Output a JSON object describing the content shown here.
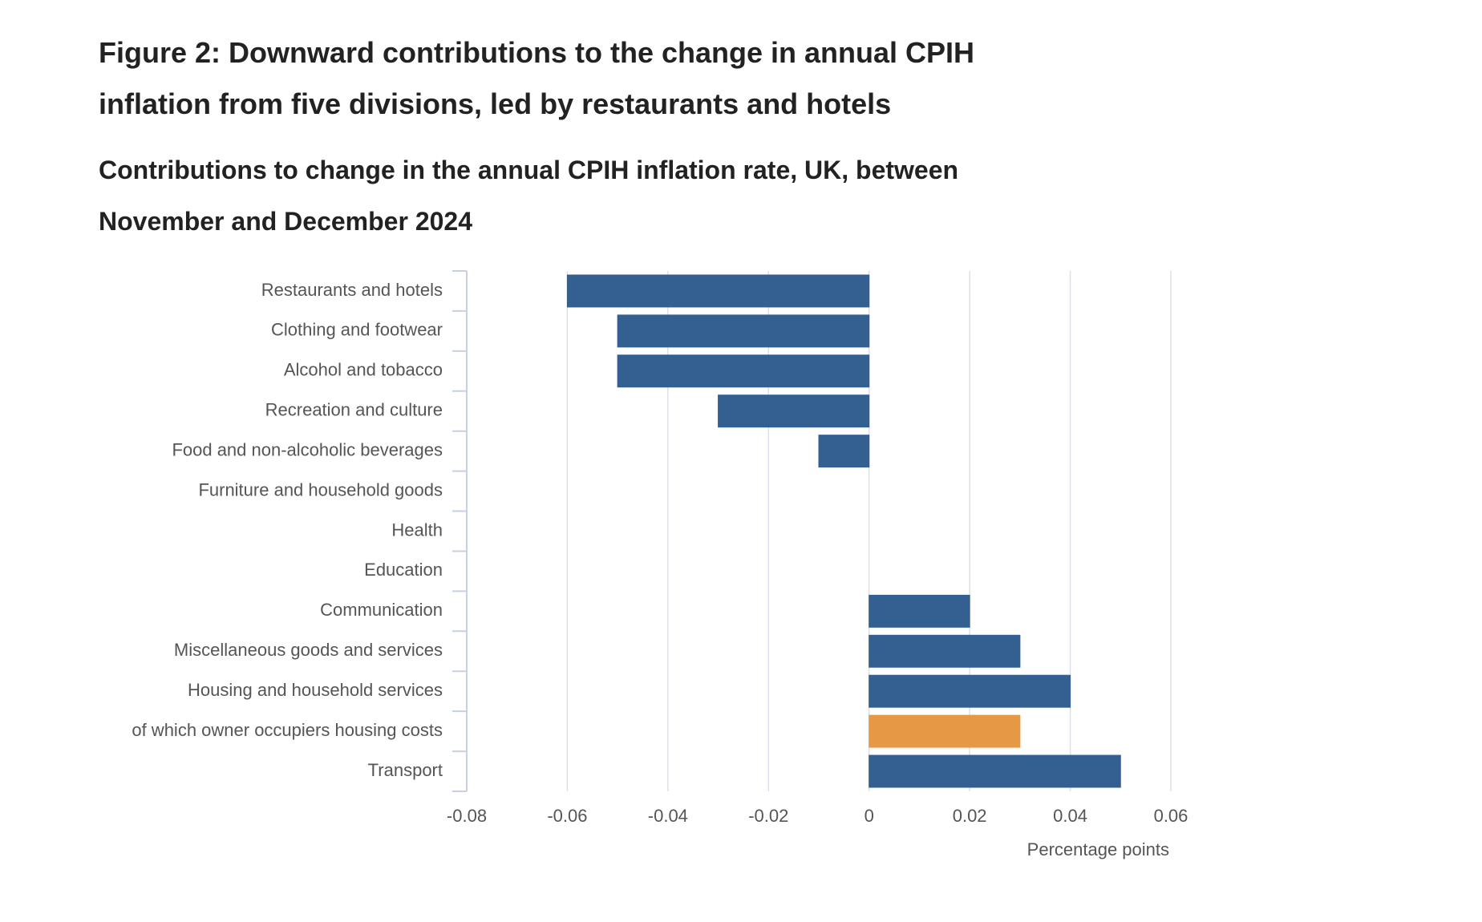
{
  "chart_data": {
    "type": "hbar",
    "title": "Figure 2: Downward contributions to the change in annual CPIH inflation from five divisions, led by restaurants and hotels",
    "subtitle": "Contributions to change in the annual CPIH inflation rate, UK, between November and December 2024",
    "x_label": "Percentage points",
    "categories": [
      "Restaurants and hotels",
      "Clothing and footwear",
      "Alcohol and tobacco",
      "Recreation and culture",
      "Food and non-alcoholic beverages",
      "Furniture and household goods",
      "Health",
      "Education",
      "Communication",
      "Miscellaneous goods and services",
      "Housing and household services",
      "of which owner occupiers housing costs",
      "Transport"
    ],
    "values": [
      -0.06,
      -0.05,
      -0.05,
      -0.03,
      -0.01,
      0,
      0,
      0,
      0.02,
      0.03,
      0.04,
      0.03,
      0.05
    ],
    "colors": [
      "#335f91",
      "#335f91",
      "#335f91",
      "#335f91",
      "#335f91",
      "#335f91",
      "#335f91",
      "#335f91",
      "#335f91",
      "#335f91",
      "#335f91",
      "#e69845",
      "#335f91"
    ],
    "xlim": [
      -0.08,
      0.06
    ],
    "xticks": [
      -0.08,
      -0.06,
      -0.04,
      -0.02,
      0,
      0.02,
      0.04,
      0.06
    ],
    "grid": true
  }
}
